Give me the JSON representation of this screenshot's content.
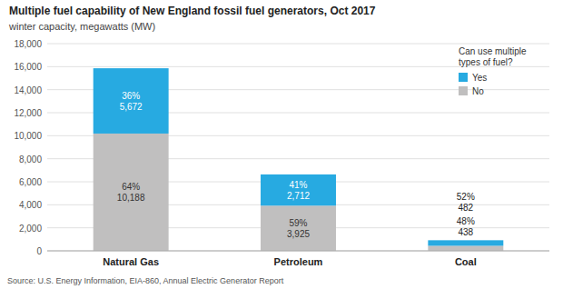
{
  "chart_data": {
    "type": "bar",
    "stacked": true,
    "title": "Multiple fuel capability of New England fossil fuel generators, Oct 2017",
    "subtitle": "winter capacity, megawatts (MW)",
    "source": "Source: U.S. Energy Information, EIA-860, Annual Electric Generator Report",
    "categories": [
      "Natural Gas",
      "Petroleum",
      "Coal"
    ],
    "series": [
      {
        "name": "No",
        "color": "#c0bfbf",
        "values": [
          10188,
          3925,
          438
        ],
        "value_labels": [
          "10,188",
          "3,925",
          "438"
        ],
        "shares": [
          64,
          59,
          48
        ],
        "share_labels": [
          "64%",
          "59%",
          "48%"
        ]
      },
      {
        "name": "Yes",
        "color": "#27aae1",
        "values": [
          5672,
          2712,
          482
        ],
        "value_labels": [
          "5,672",
          "2,712",
          "482"
        ],
        "shares": [
          36,
          41,
          52
        ],
        "share_labels": [
          "36%",
          "41%",
          "52%"
        ]
      }
    ],
    "data_labels": true,
    "ylim": [
      0,
      18000
    ],
    "yticks": [
      0,
      {
        "value": 2000,
        "label": "2,000"
      },
      {
        "value": 4000,
        "label": "4,000"
      },
      {
        "value": 6000,
        "label": "6,000"
      },
      {
        "value": 8000,
        "label": "8,000"
      },
      {
        "value": 10000,
        "label": "10,000"
      },
      {
        "value": 12000,
        "label": "12,000"
      },
      {
        "value": 14000,
        "label": "14,000"
      },
      {
        "value": 16000,
        "label": "16,000"
      },
      {
        "value": 18000,
        "label": "18,000"
      }
    ],
    "grid": true,
    "legend": "upper right",
    "legend_title": "Can use multiple\ntypes of fuel?"
  }
}
